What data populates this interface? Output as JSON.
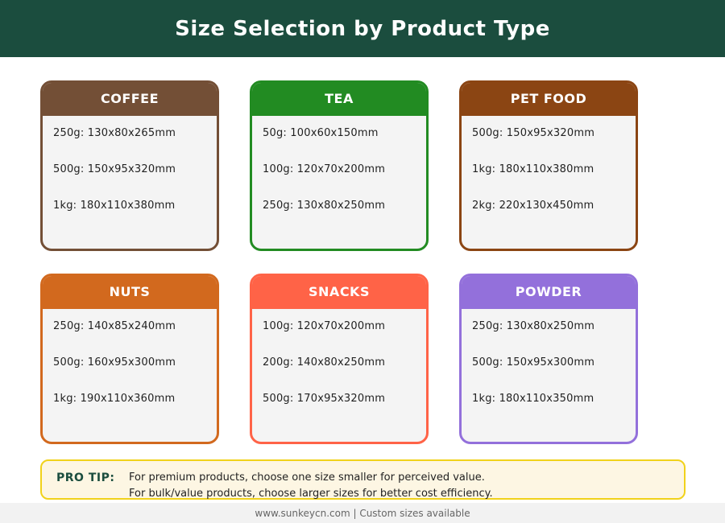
{
  "header": {
    "title": "Size Selection by Product Type"
  },
  "cards": [
    {
      "title": "COFFEE",
      "color": "#734f36",
      "sizes": [
        "250g: 130x80x265mm",
        "500g: 150x95x320mm",
        "1kg: 180x110x380mm"
      ]
    },
    {
      "title": "TEA",
      "color": "#228b22",
      "sizes": [
        "50g: 100x60x150mm",
        "100g: 120x70x200mm",
        "250g: 130x80x250mm"
      ]
    },
    {
      "title": "PET FOOD",
      "color": "#8b4513",
      "sizes": [
        "500g: 150x95x320mm",
        "1kg: 180x110x380mm",
        "2kg: 220x130x450mm"
      ]
    },
    {
      "title": "NUTS",
      "color": "#d2691e",
      "sizes": [
        "250g: 140x85x240mm",
        "500g: 160x95x300mm",
        "1kg: 190x110x360mm"
      ]
    },
    {
      "title": "SNACKS",
      "color": "#ff6347",
      "sizes": [
        "100g: 120x70x200mm",
        "200g: 140x80x250mm",
        "500g: 170x95x320mm"
      ]
    },
    {
      "title": "POWDER",
      "color": "#9370db",
      "sizes": [
        "250g: 130x80x250mm",
        "500g: 150x95x300mm",
        "1kg: 180x110x350mm"
      ]
    }
  ],
  "tip": {
    "label": "PRO TIP:",
    "line1": "For premium products, choose one size smaller for perceived value.",
    "line2": "For bulk/value products, choose larger sizes for better cost efficiency."
  },
  "footer": {
    "text": "www.sunkeycn.com | Custom sizes available"
  }
}
